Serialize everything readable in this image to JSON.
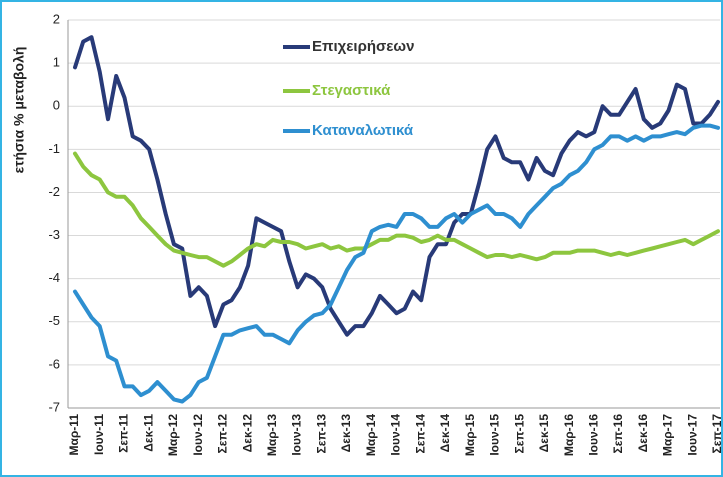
{
  "chart_data": {
    "type": "line",
    "y_label": "ετήσια % μεταβολή",
    "categories": [
      "Μαρ-11",
      null,
      null,
      "Ιουν-11",
      null,
      null,
      "Σεπ-11",
      null,
      null,
      "Δεκ-11",
      null,
      null,
      "Μαρ-12",
      null,
      null,
      "Ιουν-12",
      null,
      null,
      "Σεπ-12",
      null,
      null,
      "Δεκ-12",
      null,
      null,
      "Μαρ-13",
      null,
      null,
      "Ιουν-13",
      null,
      null,
      "Σεπ-13",
      null,
      null,
      "Δεκ-13",
      null,
      null,
      "Μαρ-14",
      null,
      null,
      "Ιουν-14",
      null,
      null,
      "Σεπ-14",
      null,
      null,
      "Δεκ-14",
      null,
      null,
      "Μαρ-15",
      null,
      null,
      "Ιουν-15",
      null,
      null,
      "Σεπ-15",
      null,
      null,
      "Δεκ-15",
      null,
      null,
      "Μαρ-16",
      null,
      null,
      "Ιουν-16",
      null,
      null,
      "Σεπ-16",
      null,
      null,
      "Δεκ-16",
      null,
      null,
      "Μαρ-17",
      null,
      null,
      "Ιουν-17",
      null,
      null,
      "Σεπ-17"
    ],
    "series": [
      {
        "name": "Επιχειρήσεων",
        "color": "#283a78",
        "values": [
          0.9,
          1.5,
          1.6,
          0.8,
          -0.3,
          0.7,
          0.2,
          -0.7,
          -0.8,
          -1.0,
          -1.7,
          -2.5,
          -3.2,
          -3.3,
          -4.4,
          -4.2,
          -4.4,
          -5.1,
          -4.6,
          -4.5,
          -4.2,
          -3.7,
          -2.6,
          -2.7,
          -2.8,
          -2.9,
          -3.6,
          -4.2,
          -3.9,
          -4.0,
          -4.2,
          -4.7,
          -5.0,
          -5.3,
          -5.1,
          -5.1,
          -4.8,
          -4.4,
          -4.6,
          -4.8,
          -4.7,
          -4.3,
          -4.5,
          -3.5,
          -3.2,
          -3.2,
          -2.7,
          -2.5,
          -2.5,
          -1.8,
          -1.0,
          -0.7,
          -1.2,
          -1.3,
          -1.3,
          -1.7,
          -1.2,
          -1.5,
          -1.6,
          -1.1,
          -0.8,
          -0.6,
          -0.7,
          -0.6,
          0.0,
          -0.2,
          -0.2,
          0.1,
          0.4,
          -0.3,
          -0.5,
          -0.4,
          -0.1,
          0.5,
          0.4,
          -0.4,
          -0.4,
          -0.2,
          0.1
        ]
      },
      {
        "name": "Στεγαστικά",
        "color": "#8dc63f",
        "values": [
          -1.1,
          -1.4,
          -1.6,
          -1.7,
          -2.0,
          -2.1,
          -2.1,
          -2.3,
          -2.6,
          -2.8,
          -3.0,
          -3.2,
          -3.35,
          -3.4,
          -3.45,
          -3.5,
          -3.5,
          -3.6,
          -3.7,
          -3.6,
          -3.45,
          -3.3,
          -3.2,
          -3.25,
          -3.1,
          -3.15,
          -3.15,
          -3.2,
          -3.3,
          -3.25,
          -3.2,
          -3.3,
          -3.25,
          -3.35,
          -3.3,
          -3.3,
          -3.2,
          -3.1,
          -3.1,
          -3.0,
          -3.0,
          -3.05,
          -3.15,
          -3.1,
          -3.0,
          -3.1,
          -3.1,
          -3.2,
          -3.3,
          -3.4,
          -3.5,
          -3.45,
          -3.45,
          -3.5,
          -3.45,
          -3.5,
          -3.55,
          -3.5,
          -3.4,
          -3.4,
          -3.4,
          -3.35,
          -3.35,
          -3.35,
          -3.4,
          -3.45,
          -3.4,
          -3.45,
          -3.4,
          -3.35,
          -3.3,
          -3.25,
          -3.2,
          -3.15,
          -3.1,
          -3.2,
          -3.1,
          -3.0,
          -2.9
        ]
      },
      {
        "name": "Καταναλωτικά",
        "color": "#2e8fd0",
        "values": [
          -4.3,
          -4.6,
          -4.9,
          -5.1,
          -5.8,
          -5.9,
          -6.5,
          -6.5,
          -6.7,
          -6.6,
          -6.4,
          -6.6,
          -6.8,
          -6.85,
          -6.7,
          -6.4,
          -6.3,
          -5.8,
          -5.3,
          -5.3,
          -5.2,
          -5.15,
          -5.1,
          -5.3,
          -5.3,
          -5.4,
          -5.5,
          -5.2,
          -5.0,
          -4.85,
          -4.8,
          -4.6,
          -4.2,
          -3.8,
          -3.5,
          -3.4,
          -2.9,
          -2.8,
          -2.75,
          -2.8,
          -2.5,
          -2.5,
          -2.6,
          -2.8,
          -2.8,
          -2.6,
          -2.5,
          -2.7,
          -2.5,
          -2.4,
          -2.3,
          -2.5,
          -2.5,
          -2.6,
          -2.8,
          -2.5,
          -2.3,
          -2.1,
          -1.9,
          -1.8,
          -1.6,
          -1.5,
          -1.3,
          -1.0,
          -0.9,
          -0.7,
          -0.7,
          -0.8,
          -0.7,
          -0.8,
          -0.7,
          -0.7,
          -0.65,
          -0.6,
          -0.65,
          -0.5,
          -0.45,
          -0.45,
          -0.5
        ]
      }
    ],
    "ylim": [
      -7,
      2
    ],
    "yticks": [
      -7,
      -6,
      -5,
      -4,
      -3,
      -2,
      -1,
      0,
      1,
      2
    ],
    "grid": true
  }
}
